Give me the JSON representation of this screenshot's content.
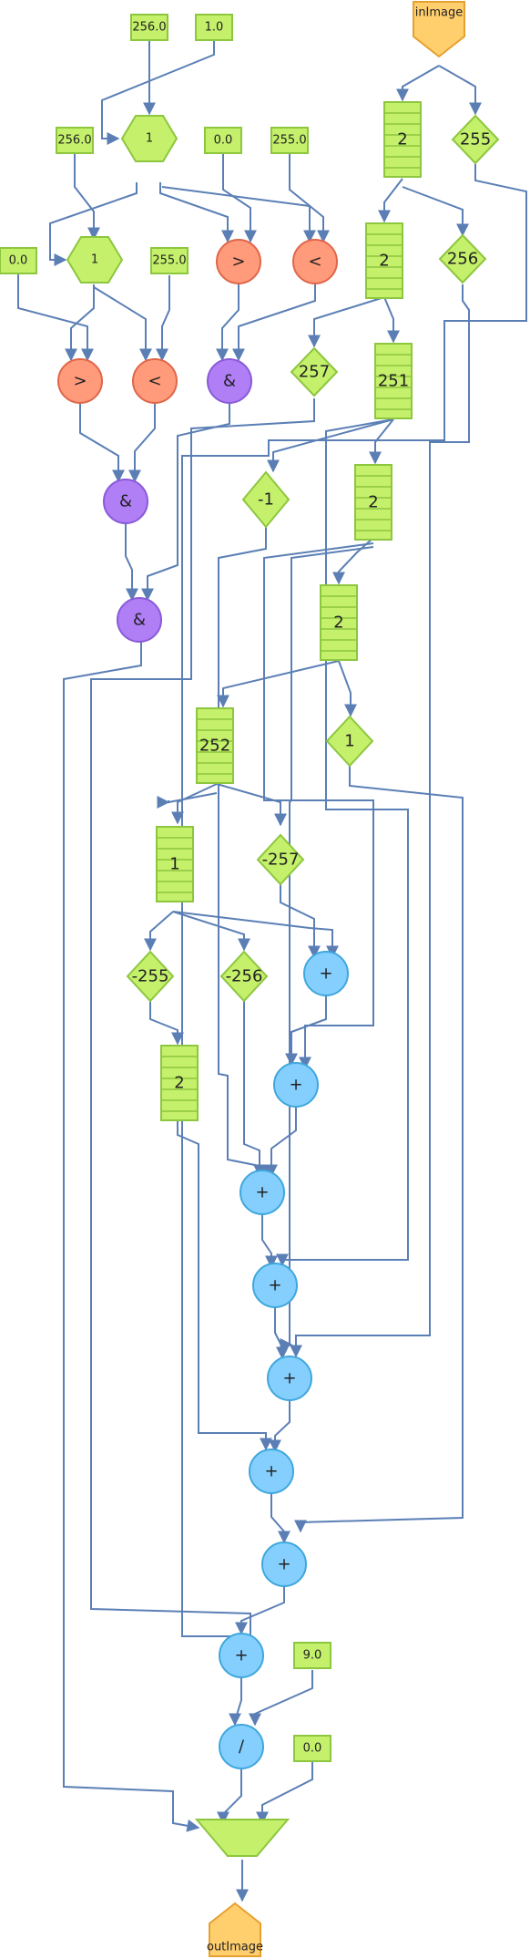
{
  "diagram": {
    "input_port": "inImage",
    "output_port": "outImage",
    "constants": {
      "c_256_top": "256.0",
      "c_1_top": "1.0",
      "c_256_left": "256.0",
      "c_0_mid": "0.0",
      "c_255_mid": "255.0",
      "c_0_left": "0.0",
      "c_255_left": "255.0",
      "c_9": "9.0",
      "c_0_bottom": "0.0"
    },
    "hexagons": {
      "hex_top": "1",
      "hex_left": "1"
    },
    "comparators": {
      "gt_mid": ">",
      "lt_mid": "<",
      "gt_left": ">",
      "lt_left": "<"
    },
    "and_ops": {
      "and_mid": "&",
      "and_left": "&",
      "and_final": "&"
    },
    "stacks": {
      "s1": "2",
      "s2": "2",
      "s3": "251",
      "s4": "2",
      "s5": "2",
      "s6": "252",
      "s7": "1",
      "s8": "2"
    },
    "diamonds": {
      "d255": "255",
      "d256": "256",
      "d257": "257",
      "dm1": "-1",
      "d1": "1",
      "dm257": "-257",
      "dm255": "-255",
      "dm256": "-256"
    },
    "adders": {
      "a1": "+",
      "a2": "+",
      "a3": "+",
      "a4": "+",
      "a5": "+",
      "a6": "+",
      "a7": "+",
      "a8": "+"
    },
    "divide": "/"
  }
}
